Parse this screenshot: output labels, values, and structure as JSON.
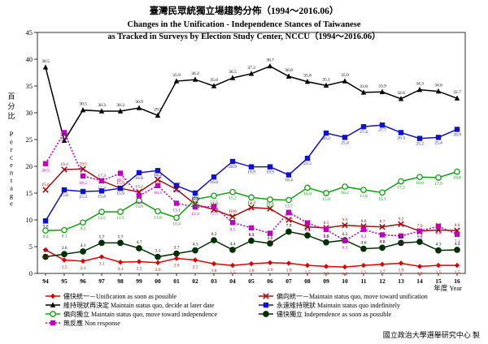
{
  "chart_data": {
    "type": "line",
    "title": "臺灣民眾統獨立場趨勢分佈（1994～2016.06）",
    "subtitle_line1": "Changes in the Unification - Independence Stances of Taiwanese",
    "subtitle_line2": "as Tracked in Surveys by Election Study Center, NCCU（1994～2016.06）",
    "ylabel_cn": "百分比",
    "ylabel_en": "Percentage",
    "xlabel": "年度 Year",
    "source": "國立政治大學選舉研究中心 製",
    "ylim": [
      0,
      45
    ],
    "yticks": [
      0,
      5,
      10,
      15,
      20,
      25,
      30,
      35,
      40,
      45
    ],
    "x": [
      "94",
      "95",
      "96",
      "97",
      "98",
      "99",
      "00",
      "01",
      "02",
      "03",
      "04",
      "05",
      "06",
      "07",
      "08",
      "09",
      "10",
      "11",
      "12",
      "13",
      "14",
      "15",
      "16"
    ],
    "grid": false,
    "legend_position": "bottom",
    "series": [
      {
        "name": "儘快統一－Unification as soon as possible",
        "color": "#e00000",
        "marker": "diamond",
        "values": [
          4.4,
          2.5,
          2.3,
          3.1,
          2.1,
          2.2,
          2.0,
          2.8,
          2.5,
          1.8,
          1.5,
          1.8,
          2.0,
          1.9,
          1.5,
          1.3,
          1.2,
          1.5,
          1.7,
          1.9,
          1.3,
          1.5,
          1.5
        ]
      },
      {
        "name": "偏向統一－Maintain status quo, move toward unification",
        "color": "#a01010",
        "marker": "cross",
        "values": [
          15.6,
          19.4,
          19.5,
          17.3,
          15.9,
          15.2,
          17.5,
          15.7,
          12.9,
          11.9,
          10.6,
          12.3,
          12.1,
          10.0,
          8.7,
          8.5,
          9.0,
          8.8,
          8.7,
          9.2,
          7.9,
          8.1,
          8.0
        ]
      },
      {
        "name": "維持現狀再決定 Maintain status quo, decide at later date",
        "color": "#000000",
        "marker": "triangle",
        "values": [
          38.5,
          24.8,
          30.5,
          30.3,
          30.3,
          30.9,
          29.5,
          35.9,
          36.2,
          35.0,
          36.5,
          37.3,
          38.7,
          36.8,
          35.8,
          35.1,
          35.9,
          33.8,
          33.9,
          32.6,
          34.3,
          34.0,
          32.7
        ]
      },
      {
        "name": "永遠維持現狀 Maintain status quo indefinitely",
        "color": "#1010d0",
        "marker": "square",
        "values": [
          9.8,
          15.6,
          15.3,
          15.4,
          15.9,
          18.8,
          19.2,
          16.4,
          15.0,
          18.0,
          20.9,
          19.9,
          19.9,
          18.4,
          21.5,
          26.2,
          25.4,
          27.4,
          27.7,
          26.3,
          25.2,
          25.4,
          26.9
        ]
      },
      {
        "name": "偏向獨立 Maintain status quo, move toward independence",
        "color": "#10a010",
        "marker": "circle",
        "values": [
          8.0,
          8.1,
          9.5,
          11.5,
          11.5,
          13.6,
          11.6,
          10.4,
          13.8,
          14.5,
          15.2,
          14.2,
          13.8,
          13.7,
          16.0,
          15.0,
          16.2,
          15.6,
          15.1,
          17.2,
          18.0,
          17.9,
          19.0
        ]
      },
      {
        "name": "儘快獨立 Independence as soon as possible",
        "color": "#003000",
        "marker": "circle",
        "values": [
          3.1,
          3.6,
          4.1,
          5.7,
          5.7,
          4.7,
          3.1,
          3.7,
          4.3,
          6.2,
          4.4,
          6.1,
          5.6,
          7.8,
          7.1,
          5.8,
          6.2,
          4.6,
          4.8,
          5.7,
          5.9,
          4.3,
          4.4
        ]
      },
      {
        "name": "無反應 Non response",
        "color": "#c000c0",
        "marker": "square",
        "dashed": true,
        "values": [
          20.5,
          26.3,
          18.2,
          17.3,
          18.7,
          14.5,
          16.4,
          13.1,
          12.4,
          12.5,
          9.5,
          8.5,
          7.5,
          11.4,
          9.4,
          8.2,
          6.1,
          8.2,
          7.2,
          7.0,
          7.9,
          8.8,
          7.3
        ]
      }
    ]
  }
}
